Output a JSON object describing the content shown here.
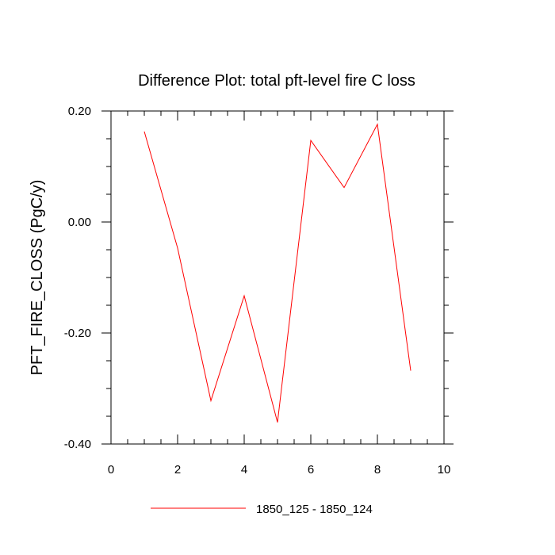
{
  "chart_data": {
    "type": "line",
    "title": "Difference Plot: total pft-level fire C loss",
    "xlabel": "",
    "ylabel": "PFT_FIRE_CLOSS  (PgC/y)",
    "xlim": [
      0,
      10
    ],
    "ylim": [
      -0.4,
      0.2
    ],
    "x_ticks": [
      0,
      2,
      4,
      6,
      8,
      10
    ],
    "x_tick_labels": [
      "0",
      "2",
      "4",
      "6",
      "8",
      "10"
    ],
    "y_ticks": [
      -0.4,
      -0.2,
      0.0,
      0.2
    ],
    "y_tick_labels": [
      "-0.40",
      "-0.20",
      "0.00",
      "0.20"
    ],
    "grid": false,
    "legend_position": "bottom",
    "series": [
      {
        "name": "1850_125 - 1850_124",
        "color": "#ff0000",
        "x": [
          1,
          2,
          3,
          4,
          5,
          6,
          7,
          8,
          9
        ],
        "values": [
          0.163,
          -0.047,
          -0.322,
          -0.133,
          -0.361,
          0.147,
          0.062,
          0.176,
          -0.268
        ]
      }
    ]
  }
}
